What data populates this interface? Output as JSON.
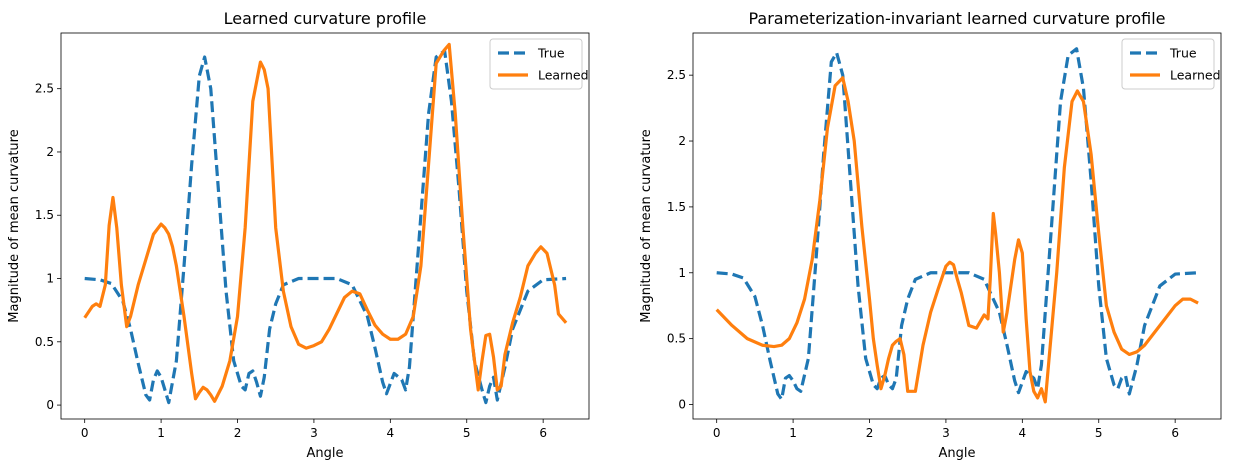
{
  "chart_data": [
    {
      "type": "line",
      "title": "Learned curvature profile",
      "xlabel": "Angle",
      "ylabel": "Magnitude of mean curvature",
      "xlim": [
        -0.31,
        6.6
      ],
      "ylim": [
        -0.11,
        2.94
      ],
      "xticks": [
        0,
        1,
        2,
        3,
        4,
        5,
        6
      ],
      "yticks": [
        0.0,
        0.5,
        1.0,
        1.5,
        2.0,
        2.5
      ],
      "grid": false,
      "legend_position": "top-right",
      "series": [
        {
          "name": "True",
          "color": "#1f77b4",
          "style": "dashed",
          "x": [
            0.0,
            0.2,
            0.35,
            0.5,
            0.6,
            0.7,
            0.8,
            0.85,
            0.9,
            0.95,
            1.0,
            1.05,
            1.1,
            1.2,
            1.3,
            1.4,
            1.5,
            1.57,
            1.65,
            1.75,
            1.85,
            1.95,
            2.05,
            2.1,
            2.15,
            2.2,
            2.25,
            2.3,
            2.35,
            2.42,
            2.5,
            2.6,
            2.8,
            3.0,
            3.3,
            3.5,
            3.7,
            3.8,
            3.9,
            3.95,
            4.05,
            4.15,
            4.2,
            4.25,
            4.35,
            4.5,
            4.6,
            4.71,
            4.8,
            4.9,
            5.0,
            5.1,
            5.2,
            5.25,
            5.3,
            5.35,
            5.4,
            5.5,
            5.6,
            5.8,
            6.0,
            6.3
          ],
          "y": [
            1.0,
            0.99,
            0.96,
            0.82,
            0.6,
            0.33,
            0.08,
            0.04,
            0.2,
            0.27,
            0.22,
            0.12,
            0.02,
            0.35,
            1.1,
            1.9,
            2.6,
            2.75,
            2.5,
            1.7,
            0.9,
            0.35,
            0.15,
            0.12,
            0.25,
            0.27,
            0.18,
            0.07,
            0.22,
            0.6,
            0.8,
            0.95,
            1.0,
            1.0,
            1.0,
            0.95,
            0.7,
            0.45,
            0.18,
            0.09,
            0.25,
            0.2,
            0.12,
            0.3,
            1.1,
            2.3,
            2.75,
            2.8,
            2.4,
            1.7,
            0.9,
            0.35,
            0.12,
            0.02,
            0.15,
            0.22,
            0.04,
            0.3,
            0.6,
            0.9,
            0.99,
            1.0
          ]
        },
        {
          "name": "Learned",
          "color": "#ff7f0e",
          "style": "solid",
          "x": [
            0.0,
            0.1,
            0.15,
            0.2,
            0.27,
            0.32,
            0.37,
            0.42,
            0.48,
            0.55,
            0.6,
            0.7,
            0.8,
            0.9,
            1.0,
            1.05,
            1.1,
            1.15,
            1.2,
            1.3,
            1.4,
            1.45,
            1.5,
            1.55,
            1.6,
            1.65,
            1.7,
            1.8,
            1.9,
            2.0,
            2.1,
            2.2,
            2.3,
            2.35,
            2.4,
            2.5,
            2.6,
            2.7,
            2.8,
            2.9,
            3.0,
            3.1,
            3.2,
            3.4,
            3.5,
            3.6,
            3.7,
            3.8,
            3.9,
            4.0,
            4.1,
            4.2,
            4.3,
            4.4,
            4.5,
            4.6,
            4.7,
            4.77,
            4.85,
            4.95,
            5.05,
            5.15,
            5.2,
            5.25,
            5.3,
            5.35,
            5.4,
            5.45,
            5.5,
            5.6,
            5.7,
            5.8,
            5.9,
            5.97,
            6.05,
            6.15,
            6.2,
            6.3
          ],
          "y": [
            0.69,
            0.78,
            0.8,
            0.78,
            0.95,
            1.42,
            1.64,
            1.4,
            0.95,
            0.62,
            0.7,
            0.95,
            1.15,
            1.35,
            1.43,
            1.4,
            1.35,
            1.25,
            1.1,
            0.7,
            0.25,
            0.05,
            0.1,
            0.14,
            0.12,
            0.08,
            0.03,
            0.15,
            0.35,
            0.7,
            1.4,
            2.4,
            2.71,
            2.65,
            2.5,
            1.4,
            0.9,
            0.62,
            0.48,
            0.45,
            0.47,
            0.5,
            0.6,
            0.85,
            0.9,
            0.88,
            0.75,
            0.63,
            0.56,
            0.52,
            0.52,
            0.56,
            0.7,
            1.1,
            1.9,
            2.7,
            2.8,
            2.85,
            2.3,
            1.4,
            0.6,
            0.12,
            0.35,
            0.55,
            0.56,
            0.38,
            0.12,
            0.15,
            0.4,
            0.65,
            0.85,
            1.1,
            1.2,
            1.25,
            1.2,
            0.95,
            0.72,
            0.65
          ]
        }
      ]
    },
    {
      "type": "line",
      "title": "Parameterization-invariant learned curvature profile",
      "xlabel": "Angle",
      "ylabel": "Magnitude of mean curvature",
      "xlim": [
        -0.31,
        6.6
      ],
      "ylim": [
        -0.11,
        2.82
      ],
      "xticks": [
        0,
        1,
        2,
        3,
        4,
        5,
        6
      ],
      "yticks": [
        0.0,
        0.5,
        1.0,
        1.5,
        2.0,
        2.5
      ],
      "grid": false,
      "legend_position": "top-right",
      "series": [
        {
          "name": "True",
          "color": "#1f77b4",
          "style": "dashed",
          "x": [
            0.0,
            0.2,
            0.35,
            0.5,
            0.6,
            0.7,
            0.8,
            0.85,
            0.9,
            0.95,
            1.0,
            1.05,
            1.1,
            1.2,
            1.3,
            1.4,
            1.5,
            1.57,
            1.65,
            1.75,
            1.85,
            1.95,
            2.05,
            2.1,
            2.15,
            2.2,
            2.25,
            2.3,
            2.35,
            2.42,
            2.5,
            2.6,
            2.8,
            3.0,
            3.3,
            3.5,
            3.7,
            3.8,
            3.9,
            3.95,
            4.05,
            4.15,
            4.2,
            4.25,
            4.35,
            4.5,
            4.6,
            4.71,
            4.8,
            4.9,
            5.0,
            5.1,
            5.2,
            5.25,
            5.3,
            5.35,
            5.4,
            5.5,
            5.6,
            5.8,
            6.0,
            6.3
          ],
          "y": [
            1.0,
            0.99,
            0.96,
            0.82,
            0.6,
            0.33,
            0.08,
            0.04,
            0.2,
            0.22,
            0.18,
            0.12,
            0.1,
            0.35,
            1.1,
            1.9,
            2.6,
            2.67,
            2.5,
            1.7,
            0.9,
            0.35,
            0.15,
            0.12,
            0.2,
            0.22,
            0.15,
            0.12,
            0.2,
            0.6,
            0.8,
            0.95,
            1.0,
            1.0,
            1.0,
            0.95,
            0.7,
            0.45,
            0.18,
            0.09,
            0.25,
            0.2,
            0.12,
            0.3,
            1.1,
            2.3,
            2.65,
            2.7,
            2.4,
            1.7,
            0.9,
            0.35,
            0.15,
            0.12,
            0.2,
            0.22,
            0.08,
            0.3,
            0.6,
            0.9,
            0.99,
            1.0
          ]
        },
        {
          "name": "Learned",
          "color": "#ff7f0e",
          "style": "solid",
          "x": [
            0.0,
            0.2,
            0.4,
            0.6,
            0.75,
            0.85,
            0.95,
            1.05,
            1.15,
            1.25,
            1.35,
            1.45,
            1.55,
            1.6,
            1.65,
            1.72,
            1.8,
            1.9,
            2.0,
            2.05,
            2.1,
            2.15,
            2.2,
            2.25,
            2.3,
            2.35,
            2.4,
            2.45,
            2.5,
            2.6,
            2.7,
            2.8,
            2.9,
            3.0,
            3.05,
            3.1,
            3.15,
            3.2,
            3.3,
            3.4,
            3.5,
            3.55,
            3.58,
            3.62,
            3.65,
            3.7,
            3.75,
            3.8,
            3.85,
            3.9,
            3.95,
            4.0,
            4.05,
            4.1,
            4.15,
            4.2,
            4.25,
            4.3,
            4.35,
            4.45,
            4.55,
            4.65,
            4.72,
            4.8,
            4.9,
            5.0,
            5.1,
            5.2,
            5.3,
            5.4,
            5.5,
            5.6,
            5.8,
            6.0,
            6.1,
            6.2,
            6.3
          ],
          "y": [
            0.72,
            0.6,
            0.5,
            0.45,
            0.44,
            0.45,
            0.5,
            0.62,
            0.8,
            1.1,
            1.55,
            2.1,
            2.42,
            2.45,
            2.48,
            2.3,
            2.0,
            1.35,
            0.8,
            0.5,
            0.3,
            0.12,
            0.22,
            0.35,
            0.45,
            0.48,
            0.5,
            0.38,
            0.1,
            0.1,
            0.45,
            0.7,
            0.88,
            1.05,
            1.08,
            1.06,
            0.95,
            0.85,
            0.6,
            0.58,
            0.68,
            0.65,
            0.95,
            1.45,
            1.3,
            1.0,
            0.55,
            0.7,
            0.9,
            1.1,
            1.25,
            1.15,
            0.65,
            0.25,
            0.1,
            0.05,
            0.12,
            0.02,
            0.35,
            1.0,
            1.8,
            2.3,
            2.38,
            2.3,
            1.9,
            1.3,
            0.75,
            0.55,
            0.42,
            0.38,
            0.4,
            0.45,
            0.6,
            0.75,
            0.8,
            0.8,
            0.77
          ]
        }
      ]
    }
  ]
}
